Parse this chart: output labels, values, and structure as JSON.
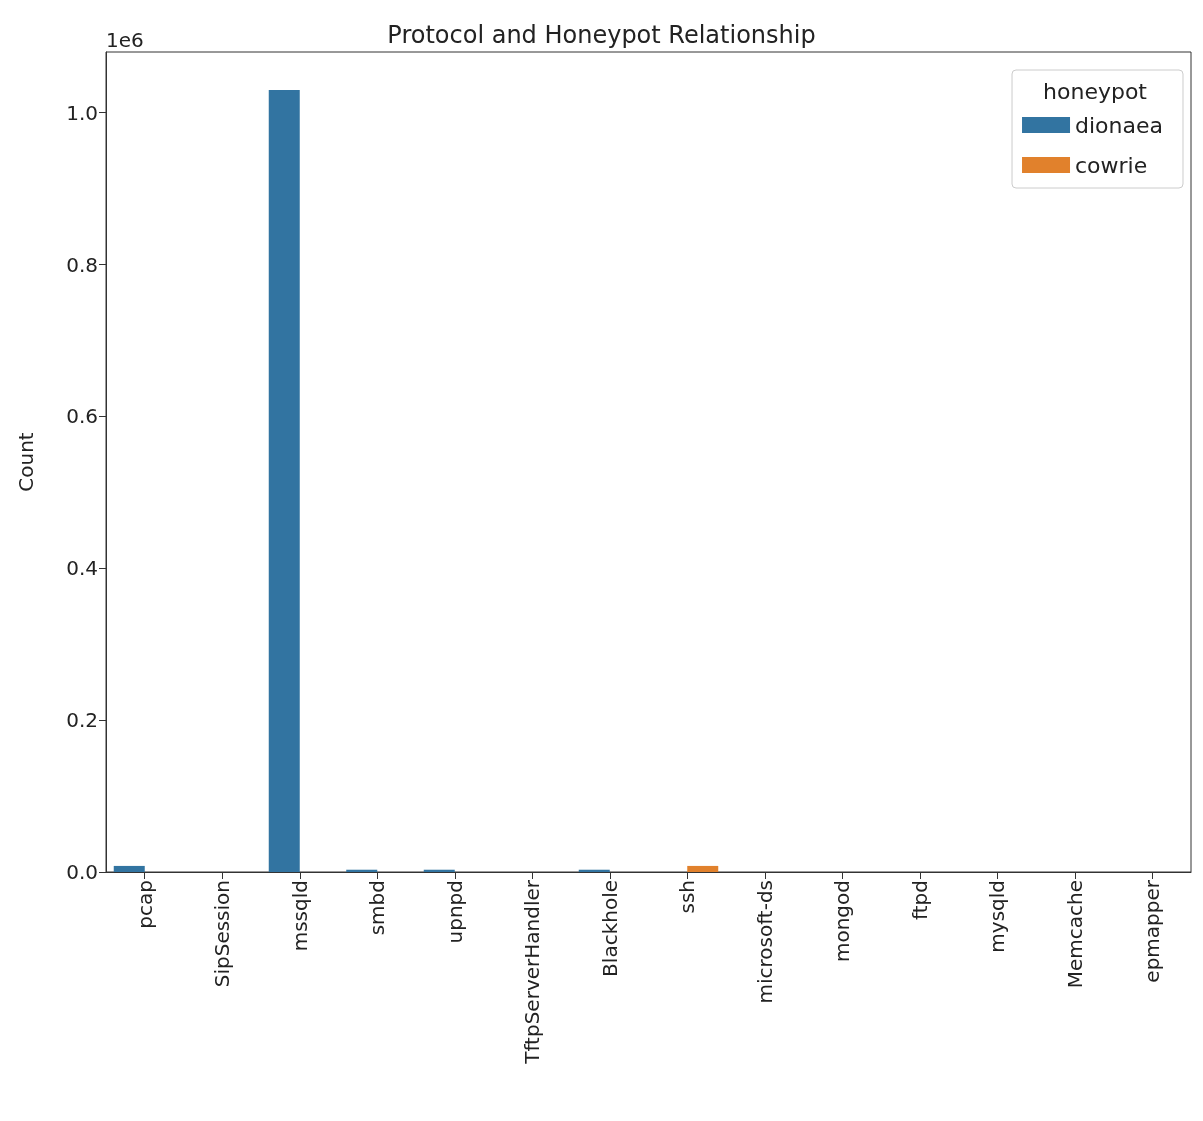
{
  "chart_data": {
    "type": "bar",
    "title": "Protocol and Honeypot Relationship",
    "ylabel": "Count",
    "legend_title": "honeypot",
    "categories": [
      "pcap",
      "SipSession",
      "mssqld",
      "smbd",
      "upnpd",
      "TftpServerHandler",
      "Blackhole",
      "ssh",
      "microsoft-ds",
      "mongod",
      "ftpd",
      "mysqld",
      "Memcache",
      "epmapper"
    ],
    "series": [
      {
        "name": "dionaea",
        "color": "#3274a1",
        "values": [
          0.008,
          null,
          1.03,
          0.003,
          0.003,
          null,
          0.003,
          null,
          null,
          null,
          null,
          null,
          null,
          null
        ]
      },
      {
        "name": "cowrie",
        "color": "#e1812c",
        "values": [
          null,
          null,
          null,
          null,
          null,
          null,
          null,
          0.008,
          null,
          null,
          null,
          null,
          null,
          null
        ]
      }
    ],
    "ylim": [
      0,
      1.08
    ],
    "yticks": [
      {
        "value": 0,
        "label": "0.0"
      },
      {
        "value": 0.2,
        "label": "0.2"
      },
      {
        "value": 0.4,
        "label": "0.4"
      },
      {
        "value": 0.6,
        "label": "0.6"
      },
      {
        "value": 0.8,
        "label": "0.8"
      },
      {
        "value": 1,
        "label": "1.0"
      }
    ],
    "annotations": [
      "1e6"
    ],
    "legend": "top right",
    "grid": false
  }
}
